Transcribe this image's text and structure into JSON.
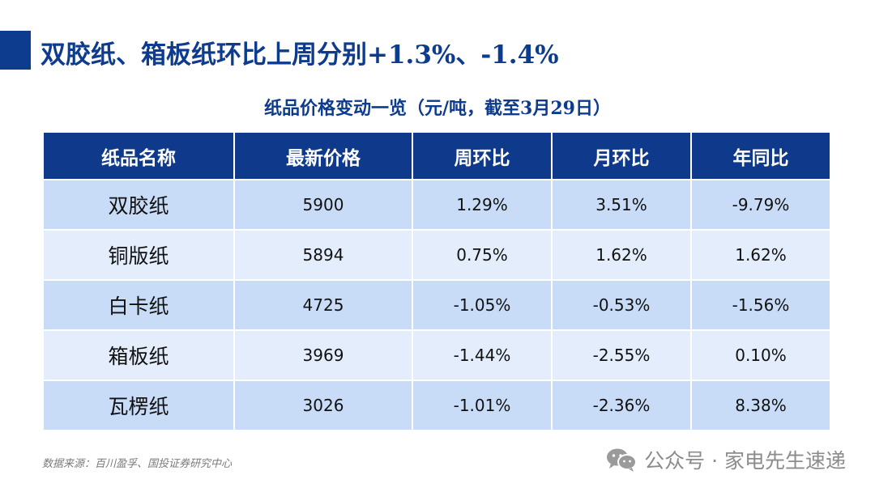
{
  "title": "双胶纸、箱板纸环比上周分别+1.3%、-1.4%",
  "table_caption": "纸品价格变动一览（元/吨，截至3月29日）",
  "table": {
    "headers": [
      "纸品名称",
      "最新价格",
      "周环比",
      "月环比",
      "年同比"
    ],
    "rows": [
      [
        "双胶纸",
        "5900",
        "1.29%",
        "3.51%",
        "-9.79%"
      ],
      [
        "铜版纸",
        "5894",
        "0.75%",
        "1.62%",
        "1.62%"
      ],
      [
        "白卡纸",
        "4725",
        "-1.05%",
        "-0.53%",
        "-1.56%"
      ],
      [
        "箱板纸",
        "3969",
        "-1.44%",
        "-2.55%",
        "0.10%"
      ],
      [
        "瓦楞纸",
        "3026",
        "-1.01%",
        "-2.36%",
        "8.38%"
      ]
    ]
  },
  "source": "数据来源：百川盈孚、国投证券研究中心",
  "watermark": {
    "icon": "wechat-icon",
    "text": "公众号 · 家电先生速递"
  },
  "colors": {
    "primary": "#0d3b8e",
    "row_dark": "#c9dcf7",
    "row_light": "#e3edfb"
  }
}
